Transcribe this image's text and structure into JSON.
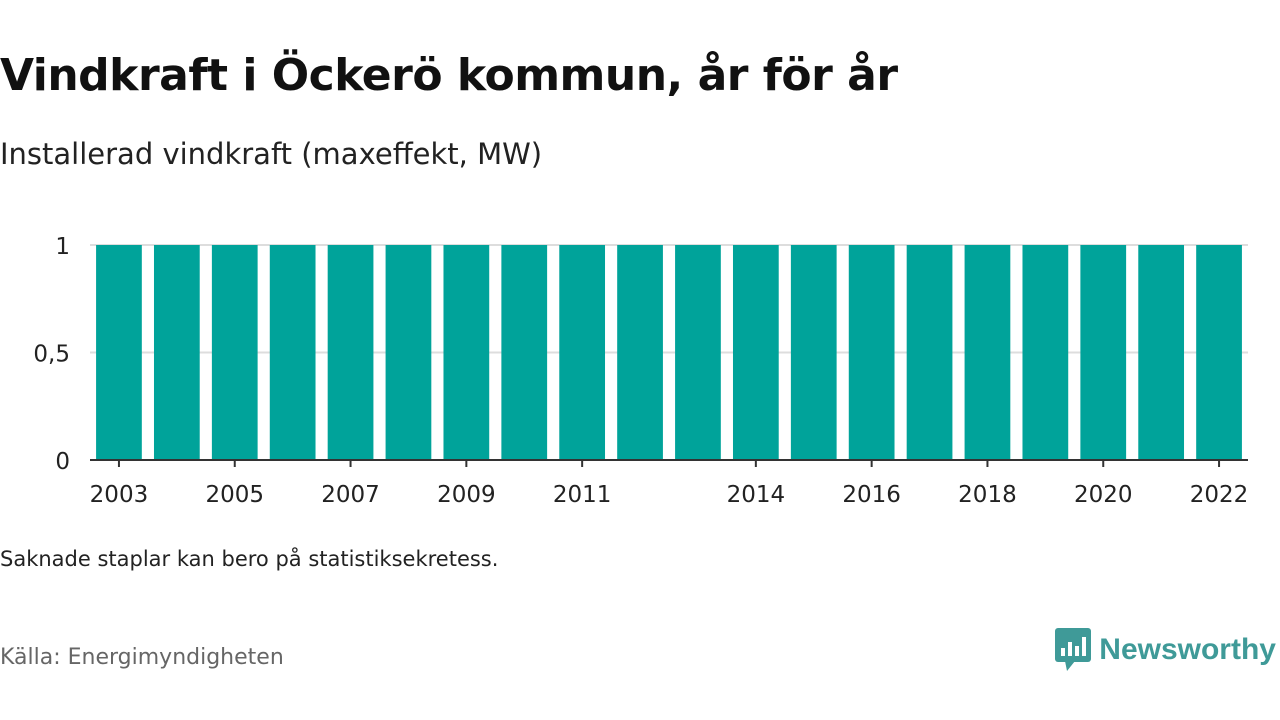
{
  "chart_data": {
    "type": "bar",
    "title": "Vindkraft i Öckerö kommun, år för år",
    "subtitle": "Installerad vindkraft (maxeffekt, MW)",
    "categories": [
      "2003",
      "2004",
      "2005",
      "2006",
      "2007",
      "2008",
      "2009",
      "2010",
      "2011",
      "2012",
      "2013",
      "2014",
      "2015",
      "2016",
      "2017",
      "2018",
      "2019",
      "2020",
      "2021",
      "2022"
    ],
    "values": [
      1,
      1,
      1,
      1,
      1,
      1,
      1,
      1,
      1,
      1,
      1,
      1,
      1,
      1,
      1,
      1,
      1,
      1,
      1,
      1
    ],
    "x_tick_labels": [
      "2003",
      "2005",
      "2007",
      "2009",
      "2011",
      "2014",
      "2016",
      "2018",
      "2020",
      "2022"
    ],
    "y_ticks": [
      0,
      0.5,
      1
    ],
    "y_tick_labels": [
      "0",
      "0,5",
      "1"
    ],
    "ylim": [
      0,
      1
    ],
    "grid": true,
    "bar_color": "#00a39a"
  },
  "footer": {
    "note": "Saknade staplar kan bero på statistiksekretess.",
    "source": "Källa: Energimyndigheten"
  },
  "brand": {
    "name": "Newsworthy",
    "icon": "newsworthy-logo-icon",
    "color": "#3f9a98"
  }
}
